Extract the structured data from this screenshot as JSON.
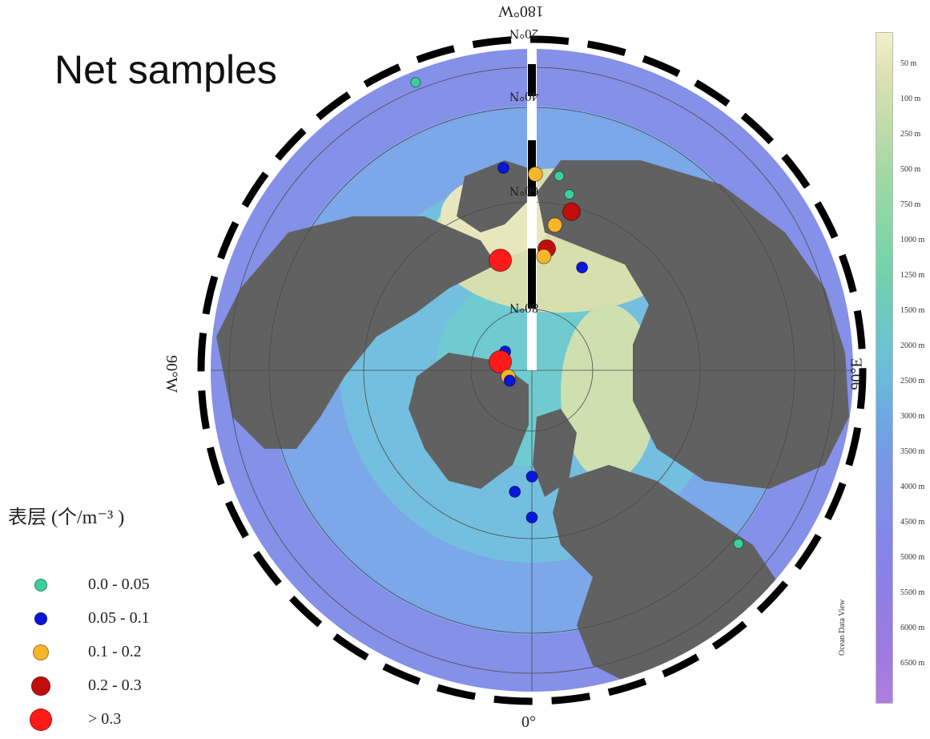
{
  "title": "Net samples",
  "labels": {
    "top": "180°W",
    "bottom": "0°",
    "left": "90°W",
    "right": "90°E",
    "lat_20": "20°N",
    "lat_40": "40°N",
    "lat_60": "60°N",
    "lat_80": "80°N"
  },
  "legend": {
    "title": "表层 (个/m⁻³ )",
    "items": [
      {
        "label": "0.0 - 0.05",
        "color": "#3ccf9c",
        "size": "small"
      },
      {
        "label": "0.05 - 0.1",
        "color": "#0a16d8",
        "size": "small"
      },
      {
        "label": "0.1 - 0.2",
        "color": "#f7b52a",
        "size": "medium"
      },
      {
        "label": "0.2 - 0.3",
        "color": "#c20d0d",
        "size": "large"
      },
      {
        "label": "> 0.3",
        "color": "#ff1a1a",
        "size": "xlarge"
      }
    ]
  },
  "colorbar": {
    "ticks": [
      "50 m",
      "100 m",
      "250 m",
      "500 m",
      "750 m",
      "1000 m",
      "1250 m",
      "1500 m",
      "2000 m",
      "2500 m",
      "3000 m",
      "3500 m",
      "4000 m",
      "4500 m",
      "5000 m",
      "5500 m",
      "6000 m",
      "6500 m"
    ],
    "colors": [
      "#f4f0cc",
      "#dfe1b3",
      "#c9ddac",
      "#b0d9a6",
      "#98d8a4",
      "#86d6a6",
      "#74d2ab",
      "#6ecbbc",
      "#6cc3d2",
      "#6bb6df",
      "#6ea4e4",
      "#7897e6",
      "#7f8ee8",
      "#8585e8",
      "#8c80e6",
      "#967ce4",
      "#a07ae2",
      "#b27ee0"
    ],
    "credit": "Ocean Data View"
  },
  "samples": [
    {
      "class": 0,
      "lon": -158,
      "lat": 52
    },
    {
      "class": 1,
      "lon": -172,
      "lat": 65
    },
    {
      "class": 2,
      "lon": 179,
      "lat": 66
    },
    {
      "class": 0,
      "lon": 172,
      "lat": 66
    },
    {
      "class": 0,
      "lon": 168,
      "lat": 68
    },
    {
      "class": 0,
      "lon": 166,
      "lat": 70
    },
    {
      "class": 3,
      "lon": 166,
      "lat": 70
    },
    {
      "class": 2,
      "lon": 171,
      "lat": 72
    },
    {
      "class": 3,
      "lon": 173,
      "lat": 75
    },
    {
      "class": 2,
      "lon": 174,
      "lat": 76
    },
    {
      "class": 1,
      "lon": 154,
      "lat": 76
    },
    {
      "class": 4,
      "lon": -164,
      "lat": 76
    },
    {
      "class": 1,
      "lon": -125,
      "lat": 86
    },
    {
      "class": 4,
      "lon": -105,
      "lat": 86
    },
    {
      "class": 2,
      "lon": -75,
      "lat": 87
    },
    {
      "class": 1,
      "lon": -65,
      "lat": 87
    },
    {
      "class": 1,
      "lon": 0,
      "lat": 77
    },
    {
      "class": 1,
      "lon": -8,
      "lat": 75
    },
    {
      "class": 1,
      "lon": 0,
      "lat": 72
    },
    {
      "class": 0,
      "lon": 50,
      "lat": 57
    }
  ]
}
